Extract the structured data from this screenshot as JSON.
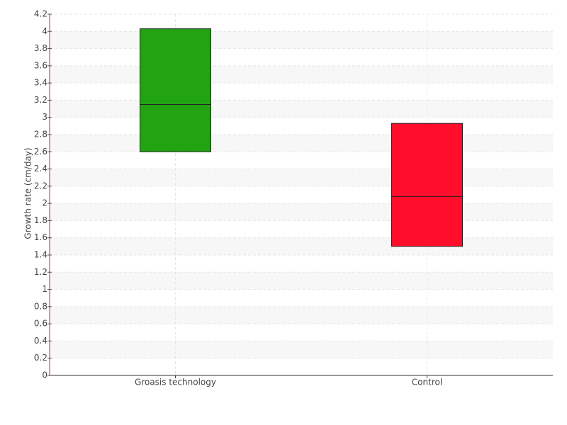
{
  "chart_data": {
    "type": "box",
    "ylabel": "Growth rate (cm/day)",
    "categories": [
      "Groasis technology",
      "Control"
    ],
    "low": [
      2.6,
      1.5
    ],
    "median": [
      3.15,
      2.08
    ],
    "high": [
      4.03,
      2.93
    ],
    "colors": [
      "#22a412",
      "#ff0d2a"
    ],
    "ylim": [
      0,
      4.2
    ],
    "yticks": [
      0,
      0.2,
      0.4,
      0.6,
      0.8,
      1,
      1.2,
      1.4,
      1.6,
      1.8,
      2,
      2.2,
      2.4,
      2.6,
      2.8,
      3,
      3.2,
      3.4,
      3.6,
      3.8,
      4,
      4.2
    ],
    "grid": true
  }
}
